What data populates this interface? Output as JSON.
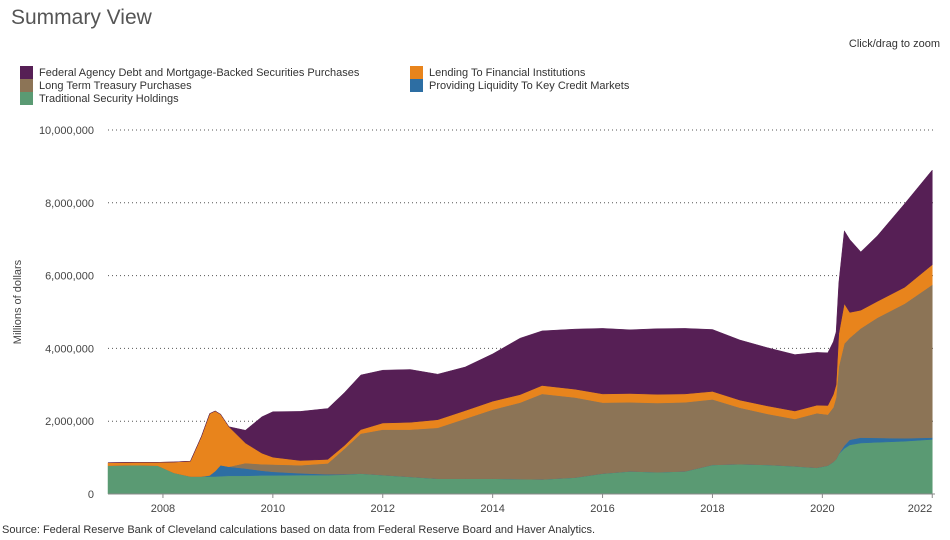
{
  "page": {
    "title": "Summary View",
    "zoom_hint": "Click/drag to zoom",
    "source": "Source: Federal Reserve Bank of Cleveland calculations based on data from Federal Reserve Board and Haver Analytics."
  },
  "chart_data": {
    "type": "area",
    "stacked": true,
    "title": "Summary View",
    "xlabel": "",
    "ylabel": "Millions of dollars",
    "xlim": [
      2007.0,
      2022.05
    ],
    "ylim": [
      0,
      10000000
    ],
    "grid": true,
    "legend_position": "top-left",
    "x_ticks": [
      2008,
      2010,
      2012,
      2014,
      2016,
      2018,
      2020,
      2022
    ],
    "y_ticks": [
      0,
      2000000,
      4000000,
      6000000,
      8000000,
      10000000
    ],
    "y_tick_labels": [
      "0",
      "2,000,000",
      "4,000,000",
      "6,000,000",
      "8,000,000",
      "10,000,000"
    ],
    "x": [
      2007.0,
      2007.5,
      2007.9,
      2008.2,
      2008.5,
      2008.7,
      2008.85,
      2008.95,
      2009.05,
      2009.2,
      2009.5,
      2009.8,
      2010.0,
      2010.5,
      2011.0,
      2011.3,
      2011.6,
      2012.0,
      2012.5,
      2013.0,
      2013.5,
      2014.0,
      2014.5,
      2014.9,
      2015.5,
      2016.0,
      2016.5,
      2017.0,
      2017.5,
      2018.0,
      2018.5,
      2019.0,
      2019.5,
      2019.7,
      2019.9,
      2020.1,
      2020.2,
      2020.25,
      2020.3,
      2020.4,
      2020.5,
      2020.7,
      2021.0,
      2021.5,
      2022.0
    ],
    "series": [
      {
        "name": "Traditional Security Holdings",
        "color": "#5a9a73",
        "values": [
          780000,
          790000,
          780000,
          580000,
          480000,
          480000,
          480000,
          480000,
          490000,
          500000,
          500000,
          510000,
          510000,
          520000,
          520000,
          530000,
          560000,
          520000,
          470000,
          420000,
          420000,
          420000,
          410000,
          400000,
          450000,
          560000,
          620000,
          600000,
          620000,
          800000,
          820000,
          800000,
          760000,
          740000,
          720000,
          780000,
          880000,
          950000,
          1100000,
          1250000,
          1350000,
          1400000,
          1420000,
          1450000,
          1500000
        ]
      },
      {
        "name": "Providing Liquidity To Key Credit Markets",
        "color": "#2d6ea3",
        "values": [
          0,
          0,
          0,
          0,
          0,
          0,
          30000,
          150000,
          300000,
          250000,
          200000,
          130000,
          100000,
          50000,
          20000,
          10000,
          0,
          0,
          0,
          0,
          0,
          0,
          0,
          0,
          0,
          0,
          0,
          0,
          0,
          0,
          0,
          0,
          0,
          0,
          0,
          0,
          0,
          0,
          0,
          80000,
          140000,
          150000,
          120000,
          80000,
          50000
        ]
      },
      {
        "name": "Long Term Treasury Purchases",
        "color": "#8c7456",
        "values": [
          0,
          0,
          0,
          0,
          0,
          0,
          0,
          0,
          0,
          0,
          150000,
          180000,
          200000,
          220000,
          300000,
          700000,
          1100000,
          1250000,
          1300000,
          1400000,
          1650000,
          1900000,
          2100000,
          2350000,
          2200000,
          1950000,
          1900000,
          1900000,
          1900000,
          1800000,
          1550000,
          1400000,
          1300000,
          1400000,
          1500000,
          1400000,
          1500000,
          1700000,
          2400000,
          2800000,
          2800000,
          3000000,
          3300000,
          3700000,
          4200000
        ]
      },
      {
        "name": "Lending To Financial Institutions",
        "color": "#e8841c",
        "values": [
          80000,
          80000,
          90000,
          300000,
          420000,
          1100000,
          1700000,
          1650000,
          1400000,
          1100000,
          550000,
          300000,
          200000,
          130000,
          110000,
          90000,
          110000,
          180000,
          200000,
          220000,
          220000,
          230000,
          220000,
          230000,
          230000,
          240000,
          240000,
          240000,
          230000,
          220000,
          210000,
          220000,
          220000,
          220000,
          220000,
          250000,
          350000,
          350000,
          900000,
          1100000,
          700000,
          500000,
          450000,
          450000,
          550000
        ]
      },
      {
        "name": "Federal Agency Debt and Mortgage-Backed Securities Purchases",
        "color": "#561f55",
        "values": [
          0,
          0,
          0,
          0,
          0,
          0,
          0,
          0,
          0,
          0,
          350000,
          1000000,
          1250000,
          1350000,
          1400000,
          1450000,
          1500000,
          1450000,
          1450000,
          1250000,
          1200000,
          1300000,
          1550000,
          1500000,
          1650000,
          1800000,
          1750000,
          1800000,
          1800000,
          1700000,
          1650000,
          1600000,
          1550000,
          1500000,
          1450000,
          1450000,
          1450000,
          1450000,
          1400000,
          2000000,
          2000000,
          1600000,
          1800000,
          2300000,
          2600000
        ]
      }
    ]
  }
}
